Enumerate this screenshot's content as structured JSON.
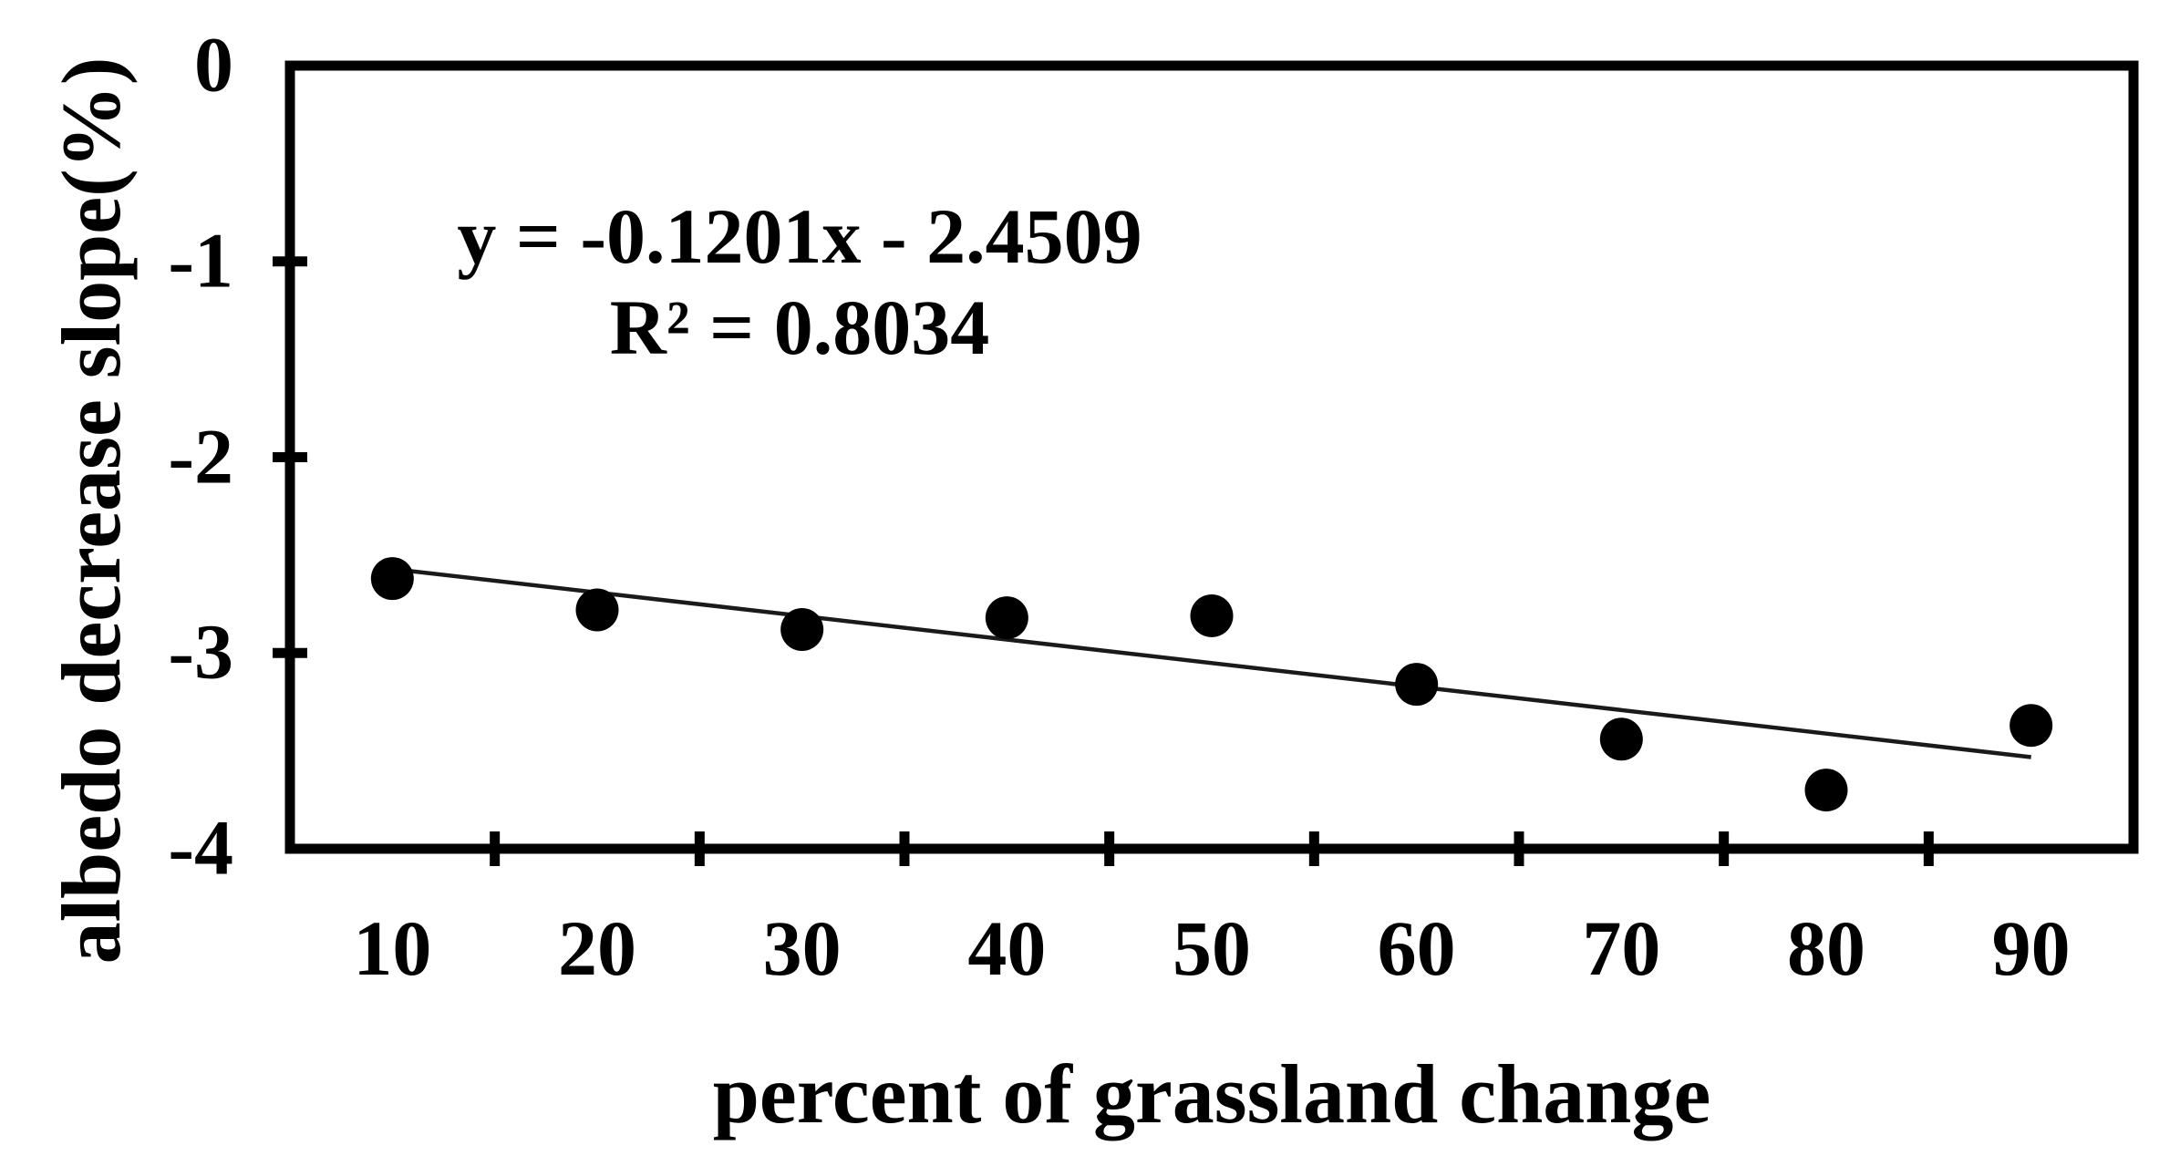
{
  "figure": {
    "background_color": "#ffffff",
    "ink_color": "#000000"
  },
  "chart_data": {
    "type": "scatter",
    "title": "",
    "xlabel": "percent of grassland change",
    "ylabel": "albedo decrease slope(%)",
    "x": [
      10,
      20,
      30,
      40,
      50,
      60,
      70,
      80,
      90
    ],
    "y": [
      -2.62,
      -2.78,
      -2.88,
      -2.82,
      -2.81,
      -3.16,
      -3.44,
      -3.7,
      -3.37
    ],
    "xlim": [
      5,
      95
    ],
    "ylim": [
      -4,
      0
    ],
    "xticks": [
      10,
      20,
      30,
      40,
      50,
      60,
      70,
      80,
      90
    ],
    "yticks": [
      0,
      -1,
      -2,
      -3,
      -4
    ],
    "grid": false,
    "legend_position": "none",
    "marker": {
      "shape": "circle",
      "color": "#000000"
    },
    "trendline": {
      "type": "linear",
      "slope": -0.1201,
      "intercept": -2.4509,
      "x_is_category_index": true,
      "index_start": 0.96,
      "index_end": 9.0,
      "color": "#1a1a1a"
    },
    "annotations": {
      "equation": "y = -0.1201x - 2.4509",
      "r_squared": "R² = 0.8034"
    }
  }
}
